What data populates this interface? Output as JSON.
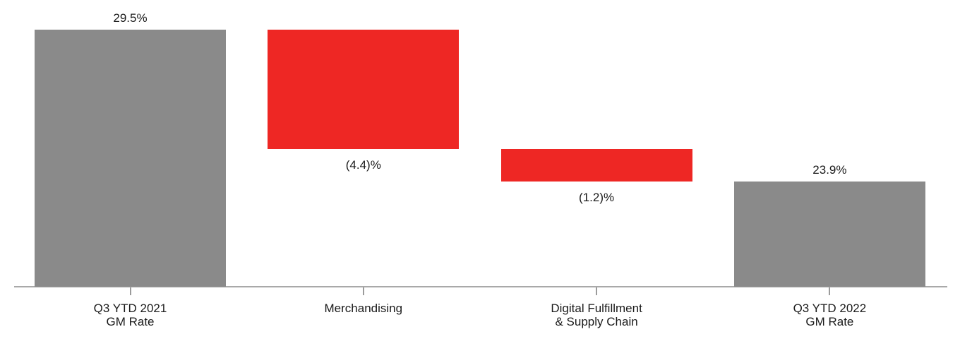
{
  "chart_data": {
    "type": "bar",
    "subtype": "waterfall",
    "title": "",
    "xlabel": "",
    "ylabel": "",
    "ylim": [
      20,
      29.5
    ],
    "grid": false,
    "legend": false,
    "categories": [
      "Q3 YTD 2021 GM Rate",
      "Merchandising",
      "Digital Fulfillment & Supply Chain",
      "Q3 YTD 2022 GM Rate"
    ],
    "colors": {
      "total_bar": "#8a8a8a",
      "decrease_bar": "#ee2724",
      "axis": "#a9a9a9",
      "text": "#1a1a1a"
    },
    "bars": [
      {
        "id": "q3-ytd-2021-gm-rate",
        "label_lines": [
          "Q3 YTD 2021",
          "GM Rate"
        ],
        "value": 29.5,
        "value_label": "29.5%",
        "start": 20,
        "end": 29.5,
        "role": "total",
        "value_label_position": "above"
      },
      {
        "id": "merchandising",
        "label_lines": [
          "Merchandising"
        ],
        "value": -4.4,
        "value_label": "(4.4)%",
        "start": 29.5,
        "end": 25.1,
        "role": "decrease",
        "value_label_position": "below"
      },
      {
        "id": "digital-fulfillment-supply-chain",
        "label_lines": [
          "Digital Fulfillment",
          "& Supply Chain"
        ],
        "value": -1.2,
        "value_label": "(1.2)%",
        "start": 25.1,
        "end": 23.9,
        "role": "decrease",
        "value_label_position": "below"
      },
      {
        "id": "q3-ytd-2022-gm-rate",
        "label_lines": [
          "Q3 YTD 2022",
          "GM Rate"
        ],
        "value": 23.9,
        "value_label": "23.9%",
        "start": 20,
        "end": 23.9,
        "role": "total",
        "value_label_position": "above"
      }
    ]
  }
}
